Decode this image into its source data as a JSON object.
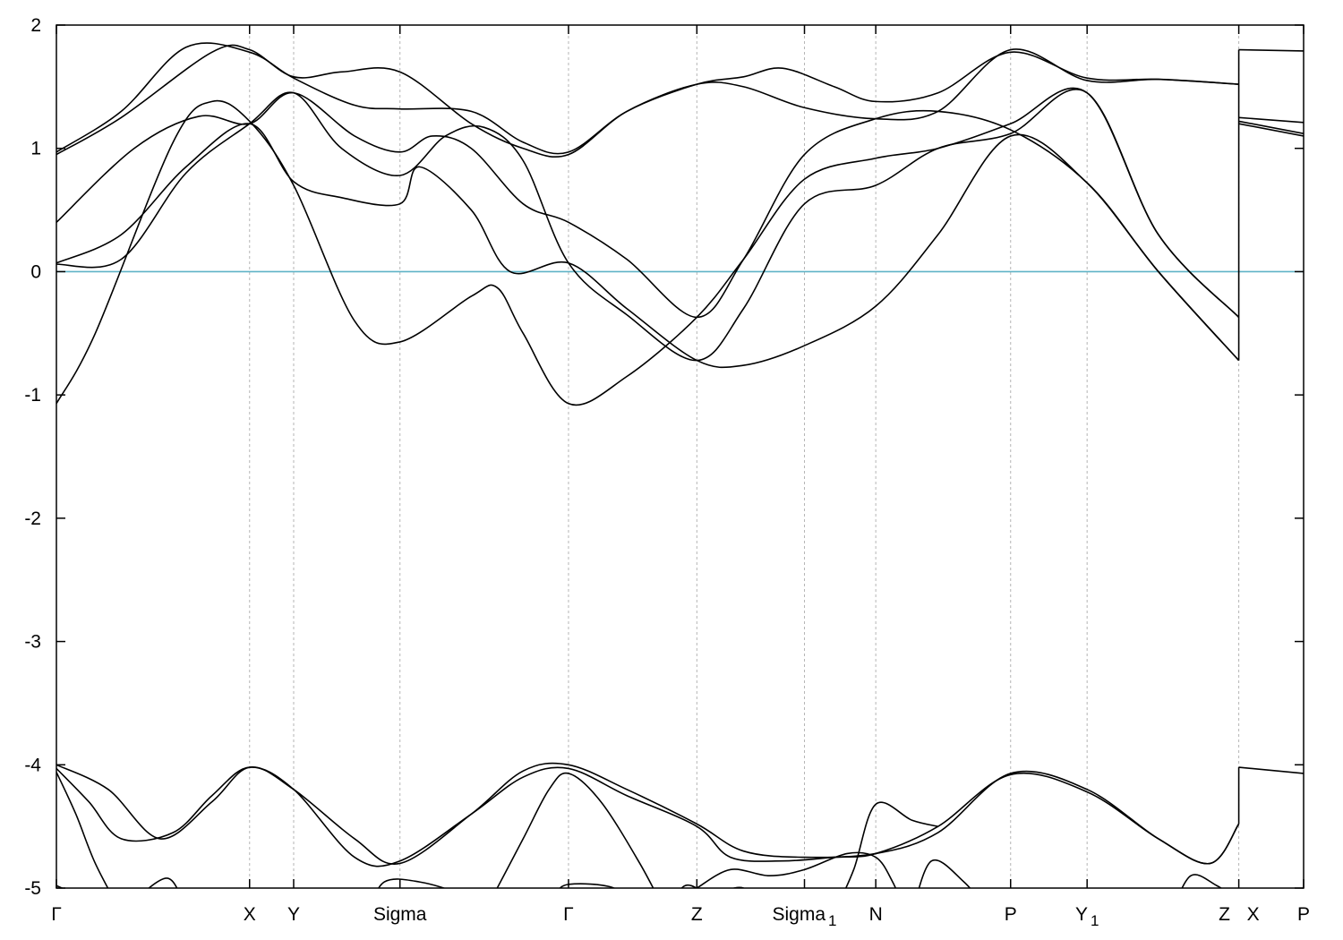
{
  "chart_data": {
    "type": "line",
    "title": "",
    "xlabel": "",
    "ylabel": "",
    "ylim": [
      -5,
      2
    ],
    "xlim": [
      0,
      9.62
    ],
    "grid": "vertical dashed lines at high-symmetry points",
    "legend": "none",
    "yticks": [
      {
        "value": 2,
        "label": "2"
      },
      {
        "value": 1,
        "label": "1"
      },
      {
        "value": 0,
        "label": "0"
      },
      {
        "value": -1,
        "label": "-1"
      },
      {
        "value": -2,
        "label": "-2"
      },
      {
        "value": -3,
        "label": "-3"
      },
      {
        "value": -4,
        "label": "-4"
      },
      {
        "value": -5,
        "label": "-5"
      }
    ],
    "kpoints": [
      {
        "x": 0.0,
        "label": "Γ",
        "sub": ""
      },
      {
        "x": 1.49,
        "label": "X",
        "sub": ""
      },
      {
        "x": 1.83,
        "label": "Y",
        "sub": ""
      },
      {
        "x": 2.65,
        "label": "Sigma",
        "sub": ""
      },
      {
        "x": 3.95,
        "label": "Γ",
        "sub": ""
      },
      {
        "x": 4.94,
        "label": "Z",
        "sub": ""
      },
      {
        "x": 5.77,
        "label": "Sigma",
        "sub": "1"
      },
      {
        "x": 6.32,
        "label": "N",
        "sub": ""
      },
      {
        "x": 7.36,
        "label": "P",
        "sub": ""
      },
      {
        "x": 7.95,
        "label": "Y",
        "sub": "1"
      },
      {
        "x": 9.12,
        "label": "Z",
        "sub": ""
      },
      {
        "x": 9.12,
        "label": "X",
        "sub": ""
      },
      {
        "x": 9.62,
        "label": "P",
        "sub": ""
      }
    ],
    "fermi_level": {
      "value": 0,
      "color": "#5fb3c6"
    },
    "series": [
      {
        "points": [
          [
            0,
            0.95
          ],
          [
            0.5,
            1.25
          ],
          [
            1.2,
            1.78
          ],
          [
            1.49,
            1.8
          ],
          [
            1.83,
            1.58
          ],
          [
            2.2,
            1.62
          ],
          [
            2.65,
            1.62
          ],
          [
            3.2,
            1.2
          ],
          [
            3.6,
            1.0
          ],
          [
            3.95,
            0.95
          ],
          [
            4.4,
            1.3
          ],
          [
            4.94,
            1.52
          ],
          [
            5.3,
            1.5
          ],
          [
            5.77,
            1.33
          ],
          [
            6.32,
            1.24
          ],
          [
            6.8,
            1.3
          ],
          [
            7.36,
            1.8
          ],
          [
            7.95,
            1.55
          ],
          [
            8.5,
            1.56
          ],
          [
            9.12,
            1.52
          ]
        ]
      },
      {
        "points": [
          [
            0,
            0.97
          ],
          [
            0.5,
            1.3
          ],
          [
            1.0,
            1.82
          ],
          [
            1.49,
            1.78
          ],
          [
            1.83,
            1.57
          ],
          [
            2.3,
            1.35
          ],
          [
            2.65,
            1.32
          ],
          [
            3.2,
            1.3
          ],
          [
            3.6,
            1.05
          ],
          [
            3.95,
            0.97
          ],
          [
            4.4,
            1.3
          ],
          [
            4.94,
            1.52
          ],
          [
            5.3,
            1.58
          ],
          [
            5.6,
            1.65
          ],
          [
            6.0,
            1.5
          ],
          [
            6.32,
            1.38
          ],
          [
            6.8,
            1.45
          ],
          [
            7.36,
            1.78
          ],
          [
            7.95,
            1.57
          ],
          [
            8.5,
            1.56
          ],
          [
            9.12,
            1.52
          ]
        ]
      },
      {
        "points": [
          [
            0,
            0.4
          ],
          [
            0.6,
            1.0
          ],
          [
            1.1,
            1.26
          ],
          [
            1.49,
            1.2
          ],
          [
            1.83,
            1.45
          ],
          [
            2.3,
            1.1
          ],
          [
            2.65,
            0.97
          ],
          [
            2.9,
            1.1
          ],
          [
            3.2,
            1.0
          ],
          [
            3.6,
            0.55
          ],
          [
            3.95,
            0.4
          ],
          [
            4.4,
            0.1
          ],
          [
            4.94,
            -0.37
          ],
          [
            5.3,
            0.1
          ],
          [
            5.77,
            0.95
          ],
          [
            6.32,
            1.24
          ],
          [
            6.8,
            1.3
          ],
          [
            7.36,
            1.15
          ],
          [
            7.95,
            0.72
          ],
          [
            8.5,
            0.0
          ],
          [
            9.12,
            -0.72
          ]
        ]
      },
      {
        "points": [
          [
            0,
            0.07
          ],
          [
            0.5,
            0.3
          ],
          [
            1.0,
            0.85
          ],
          [
            1.49,
            1.2
          ],
          [
            1.83,
            0.73
          ],
          [
            2.2,
            0.6
          ],
          [
            2.65,
            0.55
          ],
          [
            2.8,
            0.85
          ],
          [
            3.2,
            0.5
          ],
          [
            3.5,
            0.0
          ],
          [
            3.95,
            0.07
          ],
          [
            4.4,
            -0.3
          ],
          [
            4.94,
            -0.72
          ],
          [
            5.3,
            -0.76
          ],
          [
            5.77,
            -0.6
          ],
          [
            6.32,
            -0.28
          ],
          [
            6.8,
            0.3
          ],
          [
            7.36,
            1.1
          ],
          [
            7.95,
            0.72
          ],
          [
            8.5,
            0.0
          ],
          [
            9.12,
            -0.72
          ]
        ]
      },
      {
        "points": [
          [
            0,
            0.06
          ],
          [
            0.5,
            0.1
          ],
          [
            1.0,
            0.8
          ],
          [
            1.49,
            1.2
          ],
          [
            1.83,
            1.45
          ],
          [
            2.2,
            1.0
          ],
          [
            2.65,
            0.78
          ],
          [
            3.0,
            1.1
          ],
          [
            3.3,
            1.17
          ],
          [
            3.6,
            0.9
          ],
          [
            3.95,
            0.07
          ],
          [
            4.4,
            -0.35
          ],
          [
            4.94,
            -0.72
          ],
          [
            5.3,
            -0.3
          ],
          [
            5.77,
            0.55
          ],
          [
            6.32,
            0.7
          ],
          [
            6.8,
            1.0
          ],
          [
            7.36,
            1.12
          ],
          [
            7.95,
            1.45
          ],
          [
            8.5,
            0.3
          ],
          [
            9.12,
            -0.37
          ]
        ]
      },
      {
        "points": [
          [
            0,
            -1.07
          ],
          [
            0.3,
            -0.5
          ],
          [
            0.9,
            1.05
          ],
          [
            1.2,
            1.38
          ],
          [
            1.49,
            1.22
          ],
          [
            1.83,
            0.7
          ],
          [
            2.3,
            -0.4
          ],
          [
            2.65,
            -0.57
          ],
          [
            3.2,
            -0.2
          ],
          [
            3.4,
            -0.13
          ],
          [
            3.6,
            -0.5
          ],
          [
            3.95,
            -1.07
          ],
          [
            4.4,
            -0.85
          ],
          [
            4.94,
            -0.37
          ],
          [
            5.3,
            0.1
          ],
          [
            5.77,
            0.75
          ],
          [
            6.32,
            0.92
          ],
          [
            6.8,
            1.0
          ],
          [
            7.36,
            1.2
          ],
          [
            7.95,
            1.45
          ],
          [
            8.5,
            0.3
          ],
          [
            9.12,
            -0.37
          ]
        ]
      },
      {
        "points": [
          [
            9.12,
            1.8
          ],
          [
            9.62,
            1.79
          ]
        ]
      },
      {
        "points": [
          [
            9.12,
            1.25
          ],
          [
            9.62,
            1.21
          ]
        ]
      },
      {
        "points": [
          [
            9.12,
            1.22
          ],
          [
            9.62,
            1.12
          ]
        ]
      },
      {
        "points": [
          [
            9.12,
            1.2
          ],
          [
            9.62,
            1.1
          ]
        ]
      },
      {
        "points": [
          [
            0,
            -4.0
          ],
          [
            0.4,
            -4.2
          ],
          [
            0.8,
            -4.6
          ],
          [
            1.2,
            -4.3
          ],
          [
            1.49,
            -4.02
          ],
          [
            1.83,
            -4.2
          ],
          [
            2.3,
            -4.6
          ],
          [
            2.65,
            -4.8
          ],
          [
            3.2,
            -4.4
          ],
          [
            3.6,
            -4.05
          ],
          [
            3.95,
            -4.0
          ],
          [
            4.4,
            -4.2
          ],
          [
            4.94,
            -4.48
          ],
          [
            5.3,
            -4.7
          ],
          [
            5.77,
            -4.75
          ],
          [
            6.32,
            -4.72
          ],
          [
            6.8,
            -4.55
          ],
          [
            7.36,
            -4.07
          ],
          [
            7.95,
            -4.2
          ],
          [
            8.5,
            -4.6
          ],
          [
            8.9,
            -4.8
          ],
          [
            9.12,
            -4.48
          ]
        ]
      },
      {
        "points": [
          [
            0,
            -4.03
          ],
          [
            0.25,
            -4.3
          ],
          [
            0.5,
            -4.6
          ],
          [
            0.9,
            -4.55
          ],
          [
            1.2,
            -4.25
          ],
          [
            1.49,
            -4.02
          ],
          [
            1.83,
            -4.2
          ],
          [
            2.3,
            -4.75
          ],
          [
            2.65,
            -4.78
          ],
          [
            3.2,
            -4.4
          ],
          [
            3.6,
            -4.1
          ],
          [
            3.95,
            -4.03
          ],
          [
            4.4,
            -4.25
          ],
          [
            4.94,
            -4.5
          ],
          [
            5.2,
            -4.75
          ],
          [
            5.6,
            -4.78
          ],
          [
            6.0,
            -4.75
          ],
          [
            6.32,
            -4.72
          ],
          [
            6.8,
            -4.5
          ],
          [
            7.36,
            -4.08
          ],
          [
            7.95,
            -4.22
          ],
          [
            8.5,
            -4.6
          ],
          [
            8.9,
            -4.8
          ],
          [
            9.12,
            -4.48
          ]
        ]
      },
      {
        "points": [
          [
            0,
            -4.06
          ],
          [
            0.15,
            -4.4
          ],
          [
            0.3,
            -4.8
          ],
          [
            0.5,
            -5.2
          ]
        ]
      },
      {
        "points": [
          [
            3.3,
            -5.2
          ],
          [
            3.6,
            -4.6
          ],
          [
            3.8,
            -4.2
          ],
          [
            3.95,
            -4.07
          ],
          [
            4.2,
            -4.3
          ],
          [
            4.5,
            -4.8
          ],
          [
            4.7,
            -5.2
          ]
        ]
      },
      {
        "points": [
          [
            6.0,
            -5.2
          ],
          [
            6.15,
            -4.85
          ],
          [
            6.32,
            -4.32
          ],
          [
            6.6,
            -4.45
          ],
          [
            6.8,
            -4.5
          ]
        ]
      },
      {
        "points": [
          [
            4.94,
            -5.0
          ],
          [
            5.2,
            -4.85
          ],
          [
            5.5,
            -4.9
          ],
          [
            5.77,
            -4.85
          ],
          [
            6.1,
            -4.72
          ],
          [
            6.32,
            -4.75
          ],
          [
            6.45,
            -4.95
          ],
          [
            6.55,
            -5.2
          ]
        ]
      },
      {
        "points": [
          [
            0.5,
            -5.2
          ],
          [
            0.85,
            -4.92
          ],
          [
            1.0,
            -5.2
          ]
        ]
      },
      {
        "points": [
          [
            2.4,
            -5.2
          ],
          [
            2.53,
            -4.95
          ],
          [
            2.8,
            -4.95
          ],
          [
            3.1,
            -5.05
          ],
          [
            3.2,
            -5.2
          ]
        ]
      },
      {
        "points": [
          [
            6.6,
            -5.2
          ],
          [
            6.75,
            -4.78
          ],
          [
            7.0,
            -4.95
          ],
          [
            7.2,
            -5.2
          ]
        ]
      },
      {
        "points": [
          [
            8.6,
            -5.2
          ],
          [
            8.75,
            -4.9
          ],
          [
            8.95,
            -4.98
          ],
          [
            9.12,
            -5.1
          ]
        ]
      },
      {
        "points": [
          [
            3.85,
            -5.05
          ],
          [
            3.95,
            -4.97
          ],
          [
            4.3,
            -5.0
          ],
          [
            4.5,
            -5.2
          ]
        ]
      },
      {
        "points": [
          [
            4.7,
            -5.2
          ],
          [
            4.85,
            -4.98
          ],
          [
            5.05,
            -5.05
          ],
          [
            5.3,
            -5.0
          ],
          [
            5.5,
            -5.2
          ]
        ]
      },
      {
        "points": [
          [
            0,
            -4.98
          ],
          [
            0.15,
            -5.05
          ]
        ]
      },
      {
        "points": [
          [
            9.12,
            -4.02
          ],
          [
            9.62,
            -4.07
          ]
        ]
      }
    ]
  }
}
